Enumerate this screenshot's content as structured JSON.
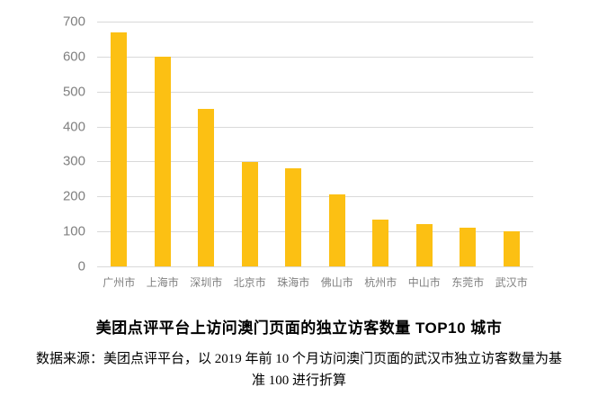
{
  "chart_data": {
    "type": "bar",
    "title": "美团点评平台上访问澳门页面的独立访客数量 TOP10 城市",
    "categories": [
      "广州市",
      "上海市",
      "深圳市",
      "北京市",
      "珠海市",
      "佛山市",
      "杭州市",
      "中山市",
      "东莞市",
      "武汉市"
    ],
    "values": [
      670,
      600,
      450,
      298,
      280,
      205,
      135,
      122,
      110,
      100
    ],
    "xlabel": "",
    "ylabel": "",
    "ylim": [
      0,
      700
    ],
    "yticks": [
      0,
      100,
      200,
      300,
      400,
      500,
      600,
      700
    ],
    "grid": true,
    "legend": "none",
    "bar_color": "#FCC013",
    "grid_color": "#D9D9D9",
    "tick_label_color": "#808080"
  },
  "caption": {
    "title": "美团点评平台上访问澳门页面的独立访客数量 TOP10 城市",
    "source_line1": "数据来源：美团点评平台，以 2019 年前 10 个月访问澳门页面的武汉市独立访客数量为基",
    "source_line2": "准 100 进行折算"
  }
}
